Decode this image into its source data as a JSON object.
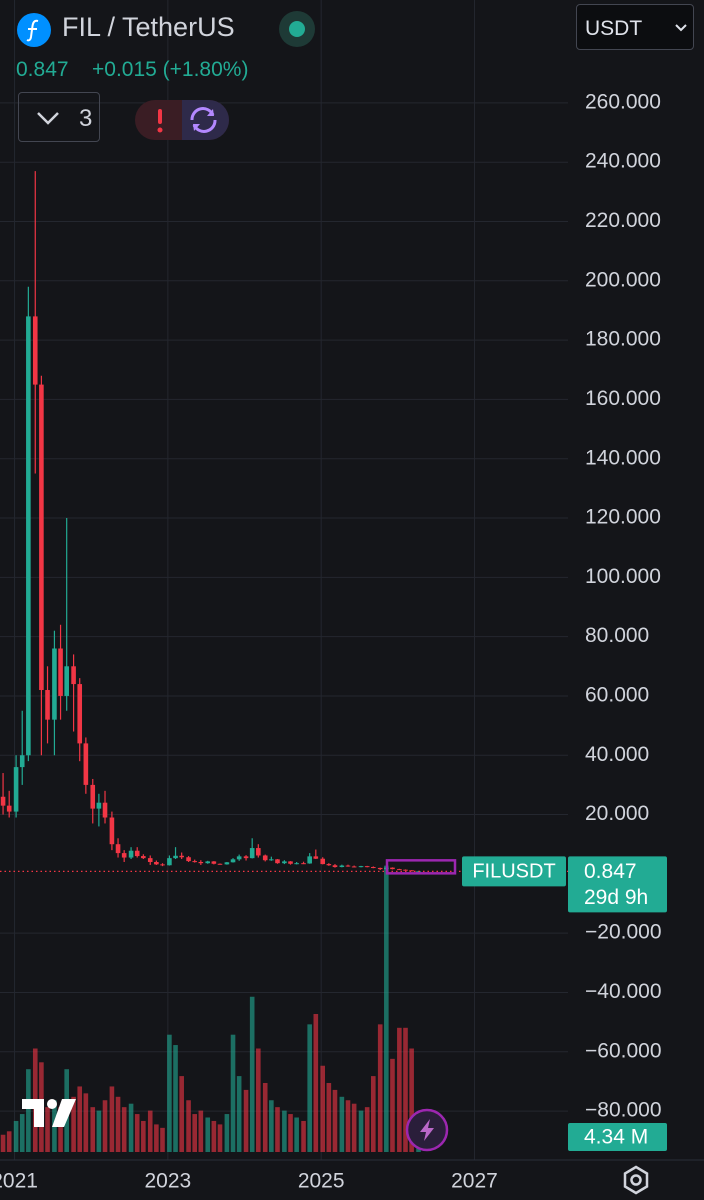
{
  "chart_data": {
    "type": "candlestick",
    "title": "FIL / TetherUS",
    "symbol": "FILUSDT",
    "last_price": 0.847,
    "change": "+0.015 (+1.80%)",
    "currency": "USDT",
    "indicator_count": 3,
    "countdown": "29d 9h",
    "x": [
      2020.85,
      2020.93,
      2021.02,
      2021.1,
      2021.18,
      2021.27,
      2021.35,
      2021.43,
      2021.52,
      2021.6,
      2021.68,
      2021.77,
      2021.85,
      2021.93,
      2022.02,
      2022.1,
      2022.18,
      2022.27,
      2022.35,
      2022.43,
      2022.52,
      2022.6,
      2022.68,
      2022.77,
      2022.85,
      2022.93,
      2023.02,
      2023.1,
      2023.18,
      2023.27,
      2023.35,
      2023.43,
      2023.52,
      2023.6,
      2023.68,
      2023.77,
      2023.85,
      2023.93,
      2024.02,
      2024.1,
      2024.18,
      2024.27,
      2024.35,
      2024.43,
      2024.52,
      2024.6,
      2024.68,
      2024.77,
      2024.85,
      2024.93,
      2025.02,
      2025.1,
      2025.18,
      2025.27,
      2025.35,
      2025.43,
      2025.52,
      2025.6,
      2025.68,
      2025.77,
      2025.85,
      2025.93,
      2026.02,
      2026.1,
      2026.18,
      2026.27
    ],
    "open": [
      26,
      23,
      21,
      36,
      40,
      188,
      165,
      62,
      52,
      76,
      60,
      70,
      64,
      44,
      30,
      22,
      24,
      19,
      10,
      7,
      5.5,
      7.8,
      6,
      5.3,
      4,
      3.2,
      2.9,
      5.3,
      6.1,
      5.6,
      4.3,
      4,
      3.6,
      4.2,
      3.4,
      3.2,
      3.9,
      4.9,
      5.9,
      5.3,
      8.7,
      6.2,
      4.6,
      4.9,
      3.6,
      4.2,
      3.4,
      3.6,
      3.5,
      5.9,
      5.1,
      3.3,
      2.9,
      2.3,
      2.8,
      2.5,
      2.4,
      2.6,
      2.3,
      2.0,
      1.6,
      2.1,
      1.6,
      1.4,
      1.2,
      0.83
    ],
    "high": [
      34,
      28,
      40,
      55,
      198,
      237,
      168,
      70,
      82,
      84,
      120,
      74,
      66,
      46,
      32,
      27,
      28,
      21,
      12,
      8,
      9,
      9,
      6.6,
      6.2,
      4.5,
      3.6,
      6.2,
      9,
      7.2,
      6,
      4.8,
      4.6,
      4.4,
      4.3,
      3.5,
      4,
      5.3,
      6.5,
      6.3,
      12,
      10,
      6.5,
      5.8,
      5,
      4.6,
      4.3,
      4,
      4.1,
      7,
      8.2,
      5.6,
      3.6,
      3.3,
      3.1,
      3.1,
      2.8,
      2.7,
      2.7,
      2.5,
      2.1,
      2.8,
      2.2,
      1.7,
      1.5,
      1.25,
      1.0
    ],
    "low": [
      20,
      19,
      19,
      30,
      38,
      135,
      40,
      44,
      40,
      52,
      55,
      48,
      38,
      27,
      17,
      16,
      17,
      8,
      5.5,
      4,
      5,
      5.5,
      5,
      3,
      3,
      2.6,
      2.8,
      5,
      5,
      4,
      3.8,
      3,
      3.4,
      3.2,
      3.1,
      3.1,
      3.8,
      4.4,
      4.5,
      5.2,
      5.5,
      4.2,
      4.4,
      3.4,
      3.3,
      3.1,
      3.2,
      3.3,
      3.4,
      5,
      3.2,
      2.7,
      2.1,
      2.2,
      2.4,
      2.2,
      2.2,
      2.2,
      1.9,
      1.3,
      1.2,
      1.5,
      1.3,
      1.1,
      0.9,
      0.82
    ],
    "close": [
      23,
      21,
      36,
      40,
      188,
      165,
      62,
      52,
      76,
      60,
      70,
      64,
      44,
      30,
      22,
      24,
      19,
      10,
      7,
      5.5,
      7.8,
      6,
      5.3,
      4,
      3.2,
      2.9,
      5.3,
      6.1,
      5.6,
      4.3,
      4,
      3.6,
      4.2,
      3.4,
      3.2,
      3.9,
      4.9,
      5.9,
      5.3,
      8.7,
      6.2,
      4.6,
      4.9,
      3.6,
      4.2,
      3.4,
      3.6,
      3.5,
      5.9,
      5.1,
      3.3,
      2.9,
      2.3,
      2.8,
      2.5,
      2.4,
      2.6,
      2.3,
      2.0,
      1.6,
      2.1,
      1.6,
      1.4,
      1.2,
      0.95,
      0.847
    ],
    "volume": [
      5,
      6,
      9,
      11,
      24,
      30,
      26,
      13,
      15,
      13,
      24,
      16,
      19,
      17,
      13,
      12,
      15,
      19,
      16,
      13,
      14,
      11,
      9,
      12,
      8,
      7,
      34,
      31,
      22,
      15,
      11,
      12,
      10,
      9,
      8,
      11,
      34,
      22,
      18,
      45,
      30,
      20,
      15,
      13,
      12,
      11,
      10,
      9,
      37,
      40,
      25,
      20,
      18,
      16,
      15,
      14,
      12,
      13,
      22,
      37,
      83,
      27,
      36,
      36,
      30,
      4.34
    ],
    "last_volume_label": "4.34 M",
    "up_color": "#22ab94",
    "down_color": "#f23645",
    "xlim": [
      2020.81,
      2028.22
    ],
    "xticks": [
      2021,
      2023,
      2025,
      2027
    ],
    "ylim": [
      -96.5,
      294.7
    ],
    "yticks": [
      {
        "value": -80,
        "label": "−80.000"
      },
      {
        "value": -60,
        "label": "−60.000"
      },
      {
        "value": -40,
        "label": "−40.000"
      },
      {
        "value": -20,
        "label": "−20.000"
      },
      {
        "value": 20,
        "label": "20.000"
      },
      {
        "value": 40,
        "label": "40.000"
      },
      {
        "value": 60,
        "label": "60.000"
      },
      {
        "value": 80,
        "label": "80.000"
      },
      {
        "value": 100,
        "label": "100.000"
      },
      {
        "value": 120,
        "label": "120.000"
      },
      {
        "value": 140,
        "label": "140.000"
      },
      {
        "value": 160,
        "label": "160.000"
      },
      {
        "value": 180,
        "label": "180.000"
      },
      {
        "value": 200,
        "label": "200.000"
      },
      {
        "value": 220,
        "label": "220.000"
      },
      {
        "value": 240,
        "label": "240.000"
      },
      {
        "value": 260,
        "label": "260.000"
      }
    ],
    "volume_lim": [
      0,
      100
    ],
    "grid": true
  }
}
